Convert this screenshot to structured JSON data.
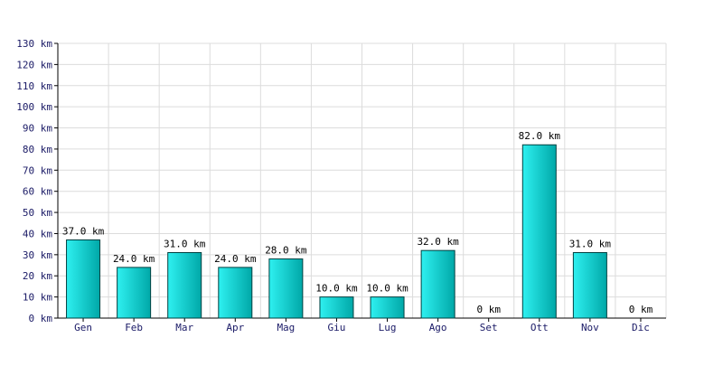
{
  "chart_data": {
    "type": "bar",
    "categories": [
      "Gen",
      "Feb",
      "Mar",
      "Apr",
      "Mag",
      "Giu",
      "Lug",
      "Ago",
      "Set",
      "Ott",
      "Nov",
      "Dic"
    ],
    "values": [
      37,
      24,
      31,
      24,
      28,
      10,
      10,
      32,
      0,
      82,
      31,
      0
    ],
    "data_labels": [
      "37.0 km",
      "24.0 km",
      "31.0 km",
      "24.0 km",
      "28.0 km",
      "10.0 km",
      "10.0 km",
      "32.0 km",
      "0 km",
      "82.0 km",
      "31.0 km",
      "0 km"
    ],
    "ylim": [
      0,
      130
    ],
    "yticks": [
      0,
      10,
      20,
      30,
      40,
      50,
      60,
      70,
      80,
      90,
      100,
      110,
      120,
      130
    ],
    "ytick_labels": [
      "0 km",
      "10 km",
      "20 km",
      "30 km",
      "40 km",
      "50 km",
      "60 km",
      "70 km",
      "80 km",
      "90 km",
      "100 km",
      "110 km",
      "120 km",
      "130 km"
    ],
    "grid": true,
    "bar_color_light": "#2ef0f0",
    "bar_color_dark": "#00a8a8",
    "bar_edge_color": "#004040"
  }
}
